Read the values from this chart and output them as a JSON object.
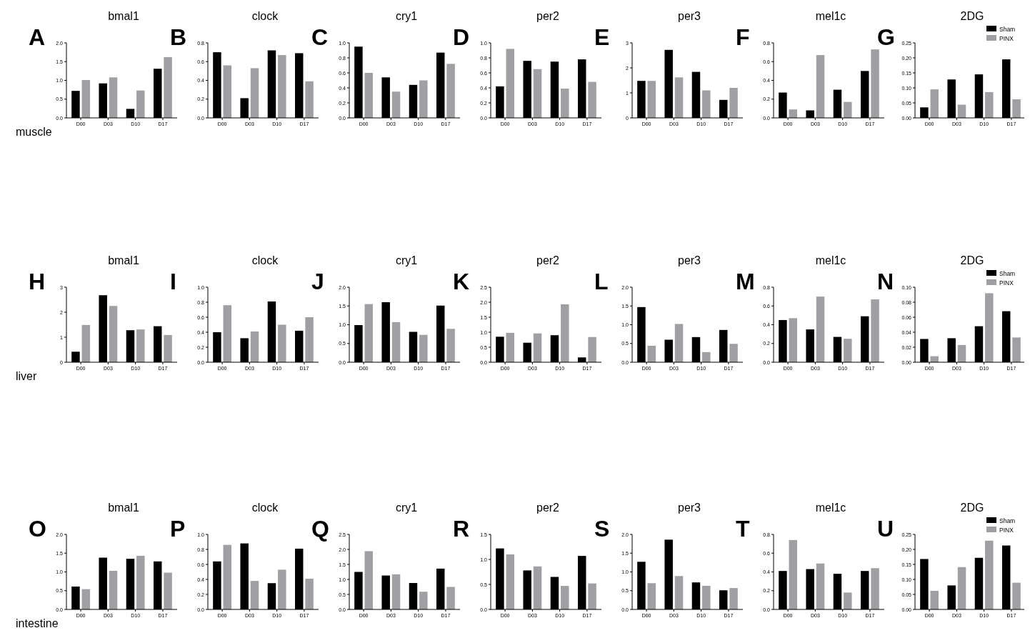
{
  "chart_data": [
    {
      "type": "bar",
      "title": "bmal1",
      "annotations": [
        "A",
        "muscle"
      ],
      "categories": [
        "D00",
        "D03",
        "D10",
        "D17"
      ],
      "ylim": [
        0,
        2
      ],
      "yticks": [
        {
          "value": 0,
          "label": "0.0"
        },
        0.5,
        {
          "value": 1,
          "label": "1.0"
        },
        1.5,
        {
          "value": 2,
          "label": "2.0"
        }
      ],
      "series": [
        {
          "color": "#000000",
          "values": [
            0.72,
            0.92,
            0.24,
            1.31
          ]
        },
        {
          "color": "#a0a0a4",
          "values": [
            1.01,
            1.08,
            0.73,
            1.62
          ]
        }
      ]
    },
    {
      "type": "bar",
      "title": "clock",
      "annotations": [
        "B"
      ],
      "categories": [
        "D00",
        "D03",
        "D10",
        "D17"
      ],
      "ylim": [
        0,
        0.8
      ],
      "yticks": [
        {
          "value": 0,
          "label": "0.0"
        },
        0.2,
        0.4,
        0.6,
        0.8
      ],
      "series": [
        {
          "color": "#000000",
          "values": [
            0.7,
            0.21,
            0.72,
            0.69
          ]
        },
        {
          "color": "#a0a0a4",
          "values": [
            0.56,
            0.53,
            0.67,
            0.39
          ]
        }
      ]
    },
    {
      "type": "bar",
      "title": "cry1",
      "annotations": [
        "C"
      ],
      "categories": [
        "D00",
        "D03",
        "D10",
        "D17"
      ],
      "ylim": [
        0,
        1
      ],
      "yticks": [
        {
          "value": 0,
          "label": "0.0"
        },
        0.2,
        0.4,
        0.6,
        0.8,
        {
          "value": 1,
          "label": "1.0"
        }
      ],
      "series": [
        {
          "color": "#000000",
          "values": [
            0.95,
            0.54,
            0.44,
            0.87
          ]
        },
        {
          "color": "#a0a0a4",
          "values": [
            0.6,
            0.35,
            0.5,
            0.72
          ]
        }
      ]
    },
    {
      "type": "bar",
      "title": "per2",
      "annotations": [
        "D"
      ],
      "categories": [
        "D00",
        "D03",
        "D10",
        "D17"
      ],
      "ylim": [
        0,
        1
      ],
      "yticks": [
        {
          "value": 0,
          "label": "0.0"
        },
        0.2,
        0.4,
        0.6,
        0.8,
        {
          "value": 1,
          "label": "1.0"
        }
      ],
      "series": [
        {
          "color": "#000000",
          "values": [
            0.42,
            0.76,
            0.75,
            0.78
          ]
        },
        {
          "color": "#a0a0a4",
          "values": [
            0.92,
            0.65,
            0.39,
            0.48
          ]
        }
      ]
    },
    {
      "type": "bar",
      "title": "per3",
      "annotations": [
        "E"
      ],
      "categories": [
        "D00",
        "D03",
        "D10",
        "D17"
      ],
      "ylim": [
        0,
        3
      ],
      "yticks": [
        0,
        1,
        2,
        3
      ],
      "series": [
        {
          "color": "#000000",
          "values": [
            1.48,
            2.72,
            1.84,
            0.72
          ]
        },
        {
          "color": "#a0a0a4",
          "values": [
            1.48,
            1.62,
            1.1,
            1.2
          ]
        }
      ]
    },
    {
      "type": "bar",
      "title": "mel1c",
      "annotations": [
        "F"
      ],
      "categories": [
        "D00",
        "D03",
        "D10",
        "D17"
      ],
      "ylim": [
        0,
        0.8
      ],
      "yticks": [
        {
          "value": 0,
          "label": "0.0"
        },
        0.2,
        0.4,
        0.6,
        0.8
      ],
      "series": [
        {
          "color": "#000000",
          "values": [
            0.27,
            0.08,
            0.3,
            0.5
          ]
        },
        {
          "color": "#a0a0a4",
          "values": [
            0.09,
            0.67,
            0.17,
            0.73
          ]
        }
      ]
    },
    {
      "type": "bar",
      "title": "2DG",
      "annotations": [
        "G"
      ],
      "legend": "top right",
      "categories": [
        "D00",
        "D03",
        "D10",
        "D17"
      ],
      "ylim": [
        0,
        0.25
      ],
      "yticks": [
        {
          "value": 0,
          "label": "0.00"
        },
        0.05,
        {
          "value": 0.1,
          "label": "0.10"
        },
        0.15,
        {
          "value": 0.2,
          "label": "0.20"
        },
        0.25
      ],
      "series": [
        {
          "name": "Sham",
          "color": "#000000",
          "values": [
            0.035,
            0.128,
            0.145,
            0.195
          ]
        },
        {
          "name": "PINX",
          "color": "#a0a0a4",
          "values": [
            0.095,
            0.044,
            0.086,
            0.062
          ]
        }
      ]
    },
    {
      "type": "bar",
      "title": "bmal1",
      "annotations": [
        "H",
        "liver"
      ],
      "categories": [
        "D00",
        "D03",
        "D10",
        "D17"
      ],
      "ylim": [
        0,
        3
      ],
      "yticks": [
        0,
        1,
        2,
        3
      ],
      "series": [
        {
          "color": "#000000",
          "values": [
            0.42,
            2.68,
            1.28,
            1.44
          ]
        },
        {
          "color": "#a0a0a4",
          "values": [
            1.49,
            2.25,
            1.31,
            1.09
          ]
        }
      ]
    },
    {
      "type": "bar",
      "title": "clock",
      "annotations": [
        "I"
      ],
      "categories": [
        "D00",
        "D03",
        "D10",
        "D17"
      ],
      "ylim": [
        0,
        1
      ],
      "yticks": [
        {
          "value": 0,
          "label": "0.0"
        },
        0.2,
        0.4,
        0.6,
        0.8,
        {
          "value": 1,
          "label": "1.0"
        }
      ],
      "series": [
        {
          "color": "#000000",
          "values": [
            0.4,
            0.32,
            0.81,
            0.42
          ]
        },
        {
          "color": "#a0a0a4",
          "values": [
            0.76,
            0.41,
            0.5,
            0.6
          ]
        }
      ]
    },
    {
      "type": "bar",
      "title": "cry1",
      "annotations": [
        "J"
      ],
      "categories": [
        "D00",
        "D03",
        "D10",
        "D17"
      ],
      "ylim": [
        0,
        2
      ],
      "yticks": [
        {
          "value": 0,
          "label": "0.0"
        },
        0.5,
        {
          "value": 1,
          "label": "1.0"
        },
        1.5,
        {
          "value": 2,
          "label": "2.0"
        }
      ],
      "series": [
        {
          "color": "#000000",
          "values": [
            0.99,
            1.6,
            0.81,
            1.51
          ]
        },
        {
          "color": "#a0a0a4",
          "values": [
            1.55,
            1.07,
            0.73,
            0.89
          ]
        }
      ]
    },
    {
      "type": "bar",
      "title": "per2",
      "annotations": [
        "K"
      ],
      "categories": [
        "D00",
        "D03",
        "D10",
        "D17"
      ],
      "ylim": [
        0,
        2.5
      ],
      "yticks": [
        {
          "value": 0,
          "label": "0.0"
        },
        0.5,
        {
          "value": 1,
          "label": "1.0"
        },
        1.5,
        {
          "value": 2,
          "label": "2.0"
        },
        2.5
      ],
      "series": [
        {
          "color": "#000000",
          "values": [
            0.85,
            0.65,
            0.9,
            0.16
          ]
        },
        {
          "color": "#a0a0a4",
          "values": [
            0.98,
            0.96,
            1.93,
            0.84
          ]
        }
      ]
    },
    {
      "type": "bar",
      "title": "per3",
      "annotations": [
        "L"
      ],
      "categories": [
        "D00",
        "D03",
        "D10",
        "D17"
      ],
      "ylim": [
        0,
        2
      ],
      "yticks": [
        {
          "value": 0,
          "label": "0.0"
        },
        0.5,
        {
          "value": 1,
          "label": "1.0"
        },
        1.5,
        {
          "value": 2,
          "label": "2.0"
        }
      ],
      "series": [
        {
          "color": "#000000",
          "values": [
            1.47,
            0.6,
            0.67,
            0.86
          ]
        },
        {
          "color": "#a0a0a4",
          "values": [
            0.44,
            1.02,
            0.27,
            0.49
          ]
        }
      ]
    },
    {
      "type": "bar",
      "title": "mel1c",
      "annotations": [
        "M"
      ],
      "categories": [
        "D00",
        "D03",
        "D10",
        "D17"
      ],
      "ylim": [
        0,
        0.8
      ],
      "yticks": [
        {
          "value": 0,
          "label": "0.0"
        },
        0.2,
        0.4,
        0.6,
        0.8
      ],
      "series": [
        {
          "color": "#000000",
          "values": [
            0.45,
            0.35,
            0.27,
            0.49
          ]
        },
        {
          "color": "#a0a0a4",
          "values": [
            0.47,
            0.7,
            0.25,
            0.67
          ]
        }
      ]
    },
    {
      "type": "bar",
      "title": "2DG",
      "annotations": [
        "N"
      ],
      "legend": "top right",
      "categories": [
        "D00",
        "D03",
        "D10",
        "D17"
      ],
      "ylim": [
        0,
        0.1
      ],
      "yticks": [
        {
          "value": 0,
          "label": "0.00"
        },
        0.02,
        0.04,
        0.06,
        0.08,
        {
          "value": 0.1,
          "label": "0.10"
        }
      ],
      "series": [
        {
          "name": "Sham",
          "color": "#000000",
          "values": [
            0.031,
            0.032,
            0.048,
            0.068
          ]
        },
        {
          "name": "PINX",
          "color": "#a0a0a4",
          "values": [
            0.008,
            0.023,
            0.092,
            0.033
          ]
        }
      ]
    },
    {
      "type": "bar",
      "title": "bmal1",
      "annotations": [
        "O",
        "intestine"
      ],
      "categories": [
        "D00",
        "D03",
        "D10",
        "D17"
      ],
      "ylim": [
        0,
        2
      ],
      "yticks": [
        {
          "value": 0,
          "label": "0.0"
        },
        0.5,
        {
          "value": 1,
          "label": "1.0"
        },
        1.5,
        {
          "value": 2,
          "label": "2.0"
        }
      ],
      "series": [
        {
          "color": "#000000",
          "values": [
            0.61,
            1.38,
            1.35,
            1.28
          ]
        },
        {
          "color": "#a0a0a4",
          "values": [
            0.54,
            1.03,
            1.43,
            0.98
          ]
        }
      ]
    },
    {
      "type": "bar",
      "title": "clock",
      "annotations": [
        "P"
      ],
      "categories": [
        "D00",
        "D03",
        "D10",
        "D17"
      ],
      "ylim": [
        0,
        1
      ],
      "yticks": [
        {
          "value": 0,
          "label": "0.0"
        },
        0.2,
        0.4,
        0.6,
        0.8,
        {
          "value": 1,
          "label": "1.0"
        }
      ],
      "series": [
        {
          "color": "#000000",
          "values": [
            0.64,
            0.88,
            0.35,
            0.81
          ]
        },
        {
          "color": "#a0a0a4",
          "values": [
            0.86,
            0.38,
            0.53,
            0.41
          ]
        }
      ]
    },
    {
      "type": "bar",
      "title": "cry1",
      "annotations": [
        "Q"
      ],
      "categories": [
        "D00",
        "D03",
        "D10",
        "D17"
      ],
      "ylim": [
        0,
        2.5
      ],
      "yticks": [
        {
          "value": 0,
          "label": "0.0"
        },
        0.5,
        {
          "value": 1,
          "label": "1.0"
        },
        1.5,
        {
          "value": 2,
          "label": "2.0"
        },
        2.5
      ],
      "series": [
        {
          "color": "#000000",
          "values": [
            1.25,
            1.13,
            0.88,
            1.36
          ]
        },
        {
          "color": "#a0a0a4",
          "values": [
            1.94,
            1.17,
            0.59,
            0.75
          ]
        }
      ]
    },
    {
      "type": "bar",
      "title": "per2",
      "annotations": [
        "R"
      ],
      "categories": [
        "D00",
        "D03",
        "D10",
        "D17"
      ],
      "ylim": [
        0,
        1.5
      ],
      "yticks": [
        {
          "value": 0,
          "label": "0.0"
        },
        0.5,
        {
          "value": 1,
          "label": "1.0"
        },
        1.5
      ],
      "series": [
        {
          "color": "#000000",
          "values": [
            1.22,
            0.78,
            0.65,
            1.07
          ]
        },
        {
          "color": "#a0a0a4",
          "values": [
            1.1,
            0.86,
            0.47,
            0.52
          ]
        }
      ]
    },
    {
      "type": "bar",
      "title": "per3",
      "annotations": [
        "S"
      ],
      "categories": [
        "D00",
        "D03",
        "D10",
        "D17"
      ],
      "ylim": [
        0,
        2
      ],
      "yticks": [
        {
          "value": 0,
          "label": "0.0"
        },
        0.5,
        {
          "value": 1,
          "label": "1.0"
        },
        1.5,
        {
          "value": 2,
          "label": "2.0"
        }
      ],
      "series": [
        {
          "color": "#000000",
          "values": [
            1.27,
            1.86,
            0.72,
            0.51
          ]
        },
        {
          "color": "#a0a0a4",
          "values": [
            0.7,
            0.89,
            0.63,
            0.57
          ]
        }
      ]
    },
    {
      "type": "bar",
      "title": "mel1c",
      "annotations": [
        "T"
      ],
      "categories": [
        "D00",
        "D03",
        "D10",
        "D17"
      ],
      "ylim": [
        0,
        0.8
      ],
      "yticks": [
        {
          "value": 0,
          "label": "0.0"
        },
        0.2,
        0.4,
        0.6,
        0.8
      ],
      "series": [
        {
          "color": "#000000",
          "values": [
            0.41,
            0.43,
            0.38,
            0.41
          ]
        },
        {
          "color": "#a0a0a4",
          "values": [
            0.74,
            0.49,
            0.18,
            0.44
          ]
        }
      ]
    },
    {
      "type": "bar",
      "title": "2DG",
      "annotations": [
        "U"
      ],
      "legend": "top right",
      "categories": [
        "D00",
        "D03",
        "D10",
        "D17"
      ],
      "ylim": [
        0,
        0.25
      ],
      "yticks": [
        {
          "value": 0,
          "label": "0.00"
        },
        0.05,
        {
          "value": 0.1,
          "label": "0.10"
        },
        0.15,
        {
          "value": 0.2,
          "label": "0.20"
        },
        0.25
      ],
      "series": [
        {
          "name": "Sham",
          "color": "#000000",
          "values": [
            0.168,
            0.08,
            0.172,
            0.213
          ]
        },
        {
          "name": "PINX",
          "color": "#a0a0a4",
          "values": [
            0.062,
            0.141,
            0.229,
            0.089
          ]
        }
      ]
    }
  ]
}
